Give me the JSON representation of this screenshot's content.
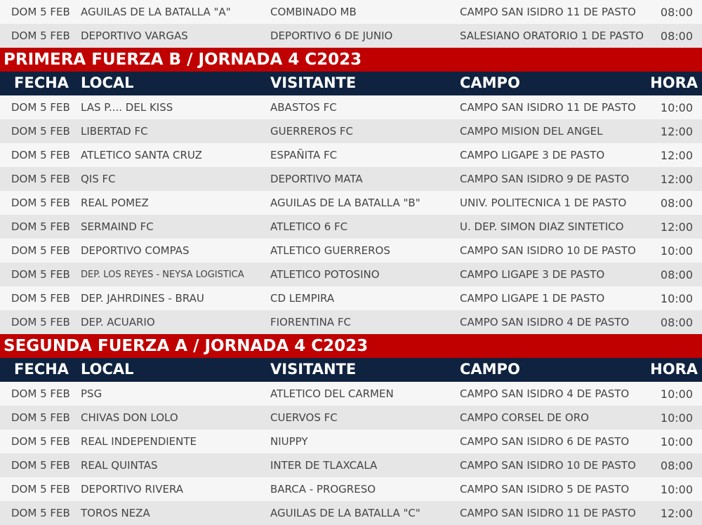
{
  "headers": {
    "fecha": "FECHA",
    "local": "LOCAL",
    "visitante": "VISITANTE",
    "campo": "CAMPO",
    "hora": "HORA"
  },
  "top_rows": [
    {
      "fecha": "DOM 5 FEB",
      "local": "AGUILAS DE LA BATALLA \"A\"",
      "visitante": "COMBINADO MB",
      "campo": "CAMPO SAN ISIDRO 11 DE PASTO",
      "hora": "08:00"
    },
    {
      "fecha": "DOM 5 FEB",
      "local": "DEPORTIVO VARGAS",
      "visitante": "DEPORTIVO 6 DE JUNIO",
      "campo": "SALESIANO ORATORIO 1 DE PASTO",
      "hora": "08:00"
    }
  ],
  "sections": [
    {
      "title": "PRIMERA FUERZA B / JORNADA 4 C2023",
      "rows": [
        {
          "fecha": "DOM 5 FEB",
          "local": "LAS P.... DEL KISS",
          "visitante": "ABASTOS FC",
          "campo": "CAMPO SAN ISIDRO 11 DE PASTO",
          "hora": "10:00"
        },
        {
          "fecha": "DOM 5 FEB",
          "local": "LIBERTAD FC",
          "visitante": "GUERREROS FC",
          "campo": "CAMPO MISION DEL ANGEL",
          "hora": "12:00"
        },
        {
          "fecha": "DOM 5 FEB",
          "local": "ATLETICO SANTA CRUZ",
          "visitante": "ESPAÑITA FC",
          "campo": "CAMPO LIGAPE 3 DE PASTO",
          "hora": "12:00"
        },
        {
          "fecha": "DOM 5 FEB",
          "local": "QIS FC",
          "visitante": "DEPORTIVO MATA",
          "campo": "CAMPO SAN ISIDRO 9 DE PASTO",
          "hora": "12:00"
        },
        {
          "fecha": "DOM 5 FEB",
          "local": "REAL POMEZ",
          "visitante": "AGUILAS DE LA BATALLA \"B\"",
          "campo": "UNIV. POLITECNICA 1 DE PASTO",
          "hora": "08:00"
        },
        {
          "fecha": "DOM 5 FEB",
          "local": "SERMAIND FC",
          "visitante": "ATLETICO 6 FC",
          "campo": "U. DEP. SIMON DIAZ SINTETICO",
          "hora": "12:00"
        },
        {
          "fecha": "DOM 5 FEB",
          "local": "DEPORTIVO COMPAS",
          "visitante": "ATLETICO GUERREROS",
          "campo": "CAMPO SAN ISIDRO 10 DE PASTO",
          "hora": "10:00"
        },
        {
          "fecha": "DOM 5 FEB",
          "local": "DEP. LOS REYES - NEYSA LOGISTICA",
          "visitante": "ATLETICO POTOSINO",
          "campo": "CAMPO LIGAPE 3 DE PASTO",
          "hora": "08:00"
        },
        {
          "fecha": "DOM 5 FEB",
          "local": "DEP. JAHRDINES - BRAU",
          "visitante": "CD LEMPIRA",
          "campo": "CAMPO LIGAPE 1 DE PASTO",
          "hora": "10:00"
        },
        {
          "fecha": "DOM 5 FEB",
          "local": "DEP. ACUARIO",
          "visitante": "FIORENTINA FC",
          "campo": "CAMPO SAN ISIDRO 4 DE PASTO",
          "hora": "08:00"
        }
      ]
    },
    {
      "title": "SEGUNDA FUERZA A / JORNADA 4 C2023",
      "rows": [
        {
          "fecha": "DOM 5 FEB",
          "local": "PSG",
          "visitante": "ATLETICO DEL CARMEN",
          "campo": "CAMPO SAN ISIDRO 4 DE PASTO",
          "hora": "10:00"
        },
        {
          "fecha": "DOM 5 FEB",
          "local": "CHIVAS DON LOLO",
          "visitante": "CUERVOS FC",
          "campo": "CAMPO CORSEL DE ORO",
          "hora": "10:00"
        },
        {
          "fecha": "DOM 5 FEB",
          "local": "REAL INDEPENDIENTE",
          "visitante": "NIUPPY",
          "campo": "CAMPO SAN ISIDRO 6 DE PASTO",
          "hora": "10:00"
        },
        {
          "fecha": "DOM 5 FEB",
          "local": "REAL QUINTAS",
          "visitante": "INTER DE TLAXCALA",
          "campo": "CAMPO SAN ISIDRO 10 DE PASTO",
          "hora": "08:00"
        },
        {
          "fecha": "DOM 5 FEB",
          "local": "DEPORTIVO RIVERA",
          "visitante": "BARCA - PROGRESO",
          "campo": "CAMPO SAN ISIDRO 5 DE PASTO",
          "hora": "10:00"
        },
        {
          "fecha": "DOM 5 FEB",
          "local": "TOROS NEZA",
          "visitante": "AGUILAS DE LA BATALLA \"C\"",
          "campo": "CAMPO SAN ISIDRO 11 DE PASTO",
          "hora": "12:00"
        }
      ]
    }
  ],
  "colors": {
    "section_title": "#c00000",
    "header": "#0f2340"
  }
}
